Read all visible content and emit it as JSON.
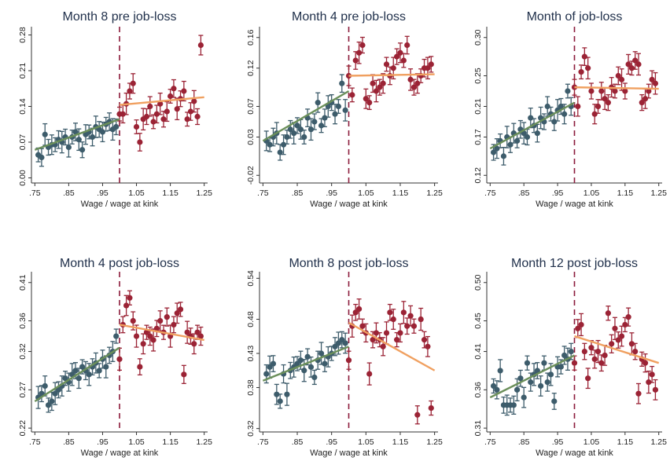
{
  "chart_data": [
    {
      "type": "scatter",
      "title": "Month 8 pre job-loss",
      "xlabel": "Wage / wage at kink",
      "xlim": [
        0.74,
        1.26
      ],
      "ylim": [
        -0.01,
        0.29
      ],
      "xticks": [
        ".75",
        ".85",
        ".95",
        "1.05",
        "1.15",
        "1.25"
      ],
      "xtick_values": [
        0.75,
        0.85,
        0.95,
        1.05,
        1.15,
        1.25
      ],
      "yticks": [
        "0.00",
        "0.07",
        "0.14",
        "0.21",
        "0.28"
      ],
      "ytick_values": [
        0.0,
        0.07,
        0.14,
        0.21,
        0.28
      ],
      "kink": 1.0,
      "left": {
        "x": [
          0.76,
          0.77,
          0.78,
          0.79,
          0.8,
          0.81,
          0.82,
          0.83,
          0.84,
          0.85,
          0.86,
          0.87,
          0.88,
          0.89,
          0.9,
          0.91,
          0.92,
          0.93,
          0.94,
          0.95,
          0.96,
          0.97,
          0.98,
          0.99
        ],
        "y": [
          0.045,
          0.04,
          0.085,
          0.06,
          0.065,
          0.065,
          0.075,
          0.07,
          0.08,
          0.06,
          0.08,
          0.09,
          0.075,
          0.055,
          0.085,
          0.09,
          0.08,
          0.1,
          0.095,
          0.09,
          0.105,
          0.11,
          0.095,
          0.1
        ]
      },
      "right": {
        "x": [
          1.0,
          1.01,
          1.02,
          1.03,
          1.04,
          1.05,
          1.06,
          1.07,
          1.08,
          1.09,
          1.1,
          1.11,
          1.12,
          1.13,
          1.14,
          1.15,
          1.16,
          1.17,
          1.18,
          1.19,
          1.2,
          1.21,
          1.22,
          1.23,
          1.24
        ],
        "y": [
          0.125,
          0.125,
          0.145,
          0.17,
          0.185,
          0.1,
          0.07,
          0.115,
          0.12,
          0.14,
          0.11,
          0.125,
          0.145,
          0.115,
          0.13,
          0.16,
          0.175,
          0.135,
          0.155,
          0.17,
          0.115,
          0.13,
          0.15,
          0.12,
          0.26
        ]
      },
      "fit_left": [
        [
          0.75,
          0.055
        ],
        [
          1.0,
          0.115
        ]
      ],
      "fit_right": [
        [
          1.0,
          0.143
        ],
        [
          1.25,
          0.158
        ]
      ]
    },
    {
      "type": "scatter",
      "title": "Month 4 pre job-loss",
      "xlabel": "Wage / wage at kink",
      "xlim": [
        0.74,
        1.26
      ],
      "ylim": [
        -0.03,
        0.17
      ],
      "xticks": [
        ".75",
        ".85",
        ".95",
        "1.05",
        "1.15",
        "1.25"
      ],
      "xtick_values": [
        0.75,
        0.85,
        0.95,
        1.05,
        1.15,
        1.25
      ],
      "yticks": [
        "-0.02",
        "0.03",
        "0.07",
        "0.12",
        "0.16"
      ],
      "ytick_values": [
        -0.02,
        0.03,
        0.07,
        0.12,
        0.16
      ],
      "kink": 1.0,
      "left": {
        "x": [
          0.76,
          0.77,
          0.78,
          0.79,
          0.8,
          0.81,
          0.82,
          0.83,
          0.84,
          0.85,
          0.86,
          0.87,
          0.88,
          0.89,
          0.9,
          0.91,
          0.92,
          0.93,
          0.94,
          0.95,
          0.96,
          0.97,
          0.98,
          0.99
        ],
        "y": [
          0.025,
          0.02,
          0.03,
          0.035,
          0.01,
          0.02,
          0.03,
          0.04,
          0.035,
          0.045,
          0.04,
          0.03,
          0.055,
          0.04,
          0.05,
          0.075,
          0.045,
          0.055,
          0.07,
          0.075,
          0.06,
          0.07,
          0.1,
          0.065
        ]
      },
      "right": {
        "x": [
          1.0,
          1.01,
          1.02,
          1.03,
          1.04,
          1.05,
          1.06,
          1.07,
          1.08,
          1.09,
          1.1,
          1.11,
          1.12,
          1.13,
          1.14,
          1.15,
          1.16,
          1.17,
          1.18,
          1.19,
          1.2,
          1.21,
          1.22,
          1.23,
          1.24
        ],
        "y": [
          0.11,
          0.085,
          0.13,
          0.14,
          0.15,
          0.08,
          0.075,
          0.1,
          0.09,
          0.095,
          0.1,
          0.125,
          0.11,
          0.12,
          0.135,
          0.14,
          0.13,
          0.15,
          0.105,
          0.095,
          0.1,
          0.11,
          0.12,
          0.12,
          0.125
        ]
      },
      "fit_left": [
        [
          0.75,
          0.025
        ],
        [
          1.0,
          0.09
        ]
      ],
      "fit_right": [
        [
          1.0,
          0.11
        ],
        [
          1.25,
          0.112
        ]
      ]
    },
    {
      "type": "scatter",
      "title": "Month of job-loss",
      "xlabel": "Wage / wage at kink",
      "xlim": [
        0.74,
        1.26
      ],
      "ylim": [
        0.11,
        0.31
      ],
      "xticks": [
        ".75",
        ".85",
        ".95",
        "1.05",
        "1.15",
        "1.25"
      ],
      "xtick_values": [
        0.75,
        0.85,
        0.95,
        1.05,
        1.15,
        1.25
      ],
      "yticks": [
        "0.12",
        "0.17",
        "0.21",
        "0.25",
        "0.30"
      ],
      "ytick_values": [
        0.12,
        0.17,
        0.21,
        0.25,
        0.3
      ],
      "kink": 1.0,
      "left": {
        "x": [
          0.76,
          0.77,
          0.78,
          0.79,
          0.8,
          0.81,
          0.82,
          0.83,
          0.84,
          0.85,
          0.86,
          0.87,
          0.88,
          0.89,
          0.9,
          0.91,
          0.92,
          0.93,
          0.94,
          0.95,
          0.96,
          0.97,
          0.98,
          0.99
        ],
        "y": [
          0.15,
          0.155,
          0.165,
          0.145,
          0.17,
          0.16,
          0.175,
          0.165,
          0.18,
          0.175,
          0.17,
          0.195,
          0.185,
          0.175,
          0.195,
          0.19,
          0.21,
          0.2,
          0.19,
          0.205,
          0.21,
          0.2,
          0.23,
          0.21
        ]
      },
      "right": {
        "x": [
          1.0,
          1.01,
          1.02,
          1.03,
          1.04,
          1.05,
          1.06,
          1.07,
          1.08,
          1.09,
          1.1,
          1.11,
          1.12,
          1.13,
          1.14,
          1.15,
          1.16,
          1.17,
          1.18,
          1.19,
          1.2,
          1.21,
          1.22,
          1.23,
          1.24
        ],
        "y": [
          0.235,
          0.21,
          0.255,
          0.275,
          0.26,
          0.23,
          0.2,
          0.21,
          0.23,
          0.22,
          0.215,
          0.235,
          0.23,
          0.25,
          0.245,
          0.23,
          0.265,
          0.26,
          0.27,
          0.265,
          0.215,
          0.22,
          0.23,
          0.245,
          0.24
        ]
      },
      "fit_left": [
        [
          0.75,
          0.155
        ],
        [
          1.0,
          0.215
        ]
      ],
      "fit_right": [
        [
          1.0,
          0.235
        ],
        [
          1.25,
          0.233
        ]
      ]
    },
    {
      "type": "scatter",
      "title": "Month 4 post job-loss",
      "xlabel": "Wage / wage at kink",
      "xlim": [
        0.74,
        1.26
      ],
      "ylim": [
        0.215,
        0.42
      ],
      "xticks": [
        ".75",
        ".85",
        ".95",
        "1.05",
        "1.15",
        "1.25"
      ],
      "xtick_values": [
        0.75,
        0.85,
        0.95,
        1.05,
        1.15,
        1.25
      ],
      "yticks": [
        "0.22",
        "0.27",
        "0.32",
        "0.36",
        "0.41"
      ],
      "ytick_values": [
        0.22,
        0.27,
        0.32,
        0.36,
        0.41
      ],
      "kink": 1.0,
      "left": {
        "x": [
          0.76,
          0.77,
          0.78,
          0.79,
          0.8,
          0.81,
          0.82,
          0.83,
          0.84,
          0.85,
          0.86,
          0.87,
          0.88,
          0.89,
          0.9,
          0.91,
          0.92,
          0.93,
          0.94,
          0.95,
          0.96,
          0.97,
          0.98,
          0.99
        ],
        "y": [
          0.26,
          0.265,
          0.275,
          0.25,
          0.255,
          0.265,
          0.27,
          0.275,
          0.285,
          0.28,
          0.29,
          0.295,
          0.285,
          0.3,
          0.295,
          0.29,
          0.3,
          0.305,
          0.295,
          0.31,
          0.3,
          0.315,
          0.32,
          0.34
        ]
      },
      "right": {
        "x": [
          1.0,
          1.01,
          1.02,
          1.03,
          1.04,
          1.05,
          1.06,
          1.07,
          1.08,
          1.09,
          1.1,
          1.11,
          1.12,
          1.13,
          1.14,
          1.15,
          1.16,
          1.17,
          1.18,
          1.19,
          1.2,
          1.21,
          1.22,
          1.23,
          1.24
        ],
        "y": [
          0.31,
          0.355,
          0.38,
          0.39,
          0.36,
          0.34,
          0.3,
          0.33,
          0.345,
          0.34,
          0.335,
          0.35,
          0.36,
          0.345,
          0.365,
          0.34,
          0.355,
          0.37,
          0.375,
          0.29,
          0.345,
          0.34,
          0.33,
          0.345,
          0.34
        ]
      },
      "fit_left": [
        [
          0.75,
          0.255
        ],
        [
          1.0,
          0.325
        ]
      ],
      "fit_right": [
        [
          1.0,
          0.355
        ],
        [
          1.25,
          0.335
        ]
      ]
    },
    {
      "type": "scatter",
      "title": "Month 8 post job-loss",
      "xlabel": "Wage / wage at kink",
      "xlim": [
        0.74,
        1.26
      ],
      "ylim": [
        0.315,
        0.545
      ],
      "xticks": [
        ".75",
        ".85",
        ".95",
        "1.05",
        "1.15",
        "1.25"
      ],
      "xtick_values": [
        0.75,
        0.85,
        0.95,
        1.05,
        1.15,
        1.25
      ],
      "yticks": [
        "0.32",
        "0.38",
        "0.43",
        "0.48",
        "0.54"
      ],
      "ytick_values": [
        0.32,
        0.38,
        0.43,
        0.48,
        0.54
      ],
      "kink": 1.0,
      "left": {
        "x": [
          0.76,
          0.77,
          0.78,
          0.79,
          0.8,
          0.81,
          0.82,
          0.83,
          0.84,
          0.85,
          0.86,
          0.87,
          0.88,
          0.89,
          0.9,
          0.91,
          0.92,
          0.93,
          0.94,
          0.95,
          0.96,
          0.97,
          0.98,
          0.99
        ],
        "y": [
          0.4,
          0.41,
          0.415,
          0.37,
          0.36,
          0.4,
          0.37,
          0.405,
          0.41,
          0.415,
          0.42,
          0.405,
          0.425,
          0.41,
          0.395,
          0.42,
          0.43,
          0.415,
          0.425,
          0.43,
          0.44,
          0.445,
          0.45,
          0.445
        ]
      },
      "right": {
        "x": [
          1.0,
          1.01,
          1.02,
          1.03,
          1.04,
          1.05,
          1.06,
          1.07,
          1.08,
          1.09,
          1.1,
          1.11,
          1.12,
          1.13,
          1.14,
          1.15,
          1.16,
          1.17,
          1.18,
          1.19,
          1.2,
          1.21,
          1.22,
          1.23,
          1.24
        ],
        "y": [
          0.42,
          0.47,
          0.49,
          0.495,
          0.47,
          0.46,
          0.4,
          0.45,
          0.46,
          0.45,
          0.44,
          0.46,
          0.49,
          0.48,
          0.45,
          0.46,
          0.49,
          0.47,
          0.485,
          0.47,
          0.34,
          0.48,
          0.45,
          0.44,
          0.35
        ]
      },
      "fit_left": [
        [
          0.75,
          0.39
        ],
        [
          1.0,
          0.44
        ]
      ],
      "fit_right": [
        [
          1.0,
          0.475
        ],
        [
          1.25,
          0.405
        ]
      ]
    },
    {
      "type": "scatter",
      "title": "Month 12 post job-loss",
      "xlabel": "Wage / wage at kink",
      "xlim": [
        0.74,
        1.26
      ],
      "ylim": [
        0.305,
        0.51
      ],
      "xticks": [
        ".75",
        ".85",
        ".95",
        "1.05",
        "1.15",
        "1.25"
      ],
      "xtick_values": [
        0.75,
        0.85,
        0.95,
        1.05,
        1.15,
        1.25
      ],
      "yticks": [
        "0.31",
        "0.36",
        "0.41",
        "0.45",
        "0.50"
      ],
      "ytick_values": [
        0.31,
        0.36,
        0.41,
        0.45,
        0.5
      ],
      "kink": 1.0,
      "left": {
        "x": [
          0.76,
          0.77,
          0.78,
          0.79,
          0.8,
          0.81,
          0.82,
          0.83,
          0.84,
          0.85,
          0.86,
          0.87,
          0.88,
          0.89,
          0.9,
          0.91,
          0.92,
          0.93,
          0.94,
          0.95,
          0.96,
          0.97,
          0.98,
          0.99
        ],
        "y": [
          0.365,
          0.36,
          0.385,
          0.34,
          0.34,
          0.34,
          0.34,
          0.36,
          0.375,
          0.35,
          0.395,
          0.37,
          0.38,
          0.385,
          0.365,
          0.395,
          0.37,
          0.38,
          0.345,
          0.39,
          0.39,
          0.405,
          0.4,
          0.41
        ]
      },
      "right": {
        "x": [
          1.0,
          1.01,
          1.02,
          1.03,
          1.04,
          1.05,
          1.06,
          1.07,
          1.08,
          1.09,
          1.1,
          1.11,
          1.12,
          1.13,
          1.14,
          1.15,
          1.16,
          1.17,
          1.18,
          1.19,
          1.2,
          1.21,
          1.22,
          1.23,
          1.24
        ],
        "y": [
          0.395,
          0.44,
          0.445,
          0.41,
          0.375,
          0.415,
          0.4,
          0.41,
          0.395,
          0.405,
          0.46,
          0.42,
          0.44,
          0.425,
          0.43,
          0.445,
          0.455,
          0.42,
          0.41,
          0.355,
          0.4,
          0.395,
          0.37,
          0.38,
          0.36
        ]
      },
      "fit_left": [
        [
          0.75,
          0.35
        ],
        [
          1.0,
          0.405
        ]
      ],
      "fit_right": [
        [
          1.0,
          0.43
        ],
        [
          1.25,
          0.395
        ]
      ]
    }
  ],
  "colors": {
    "left_marker": "#3d5c6b",
    "right_marker": "#9b2335",
    "fit_left": "#6b8f5a",
    "fit_right": "#f0a060",
    "kink_line": "#8b1a3a",
    "axis": "#333333"
  }
}
